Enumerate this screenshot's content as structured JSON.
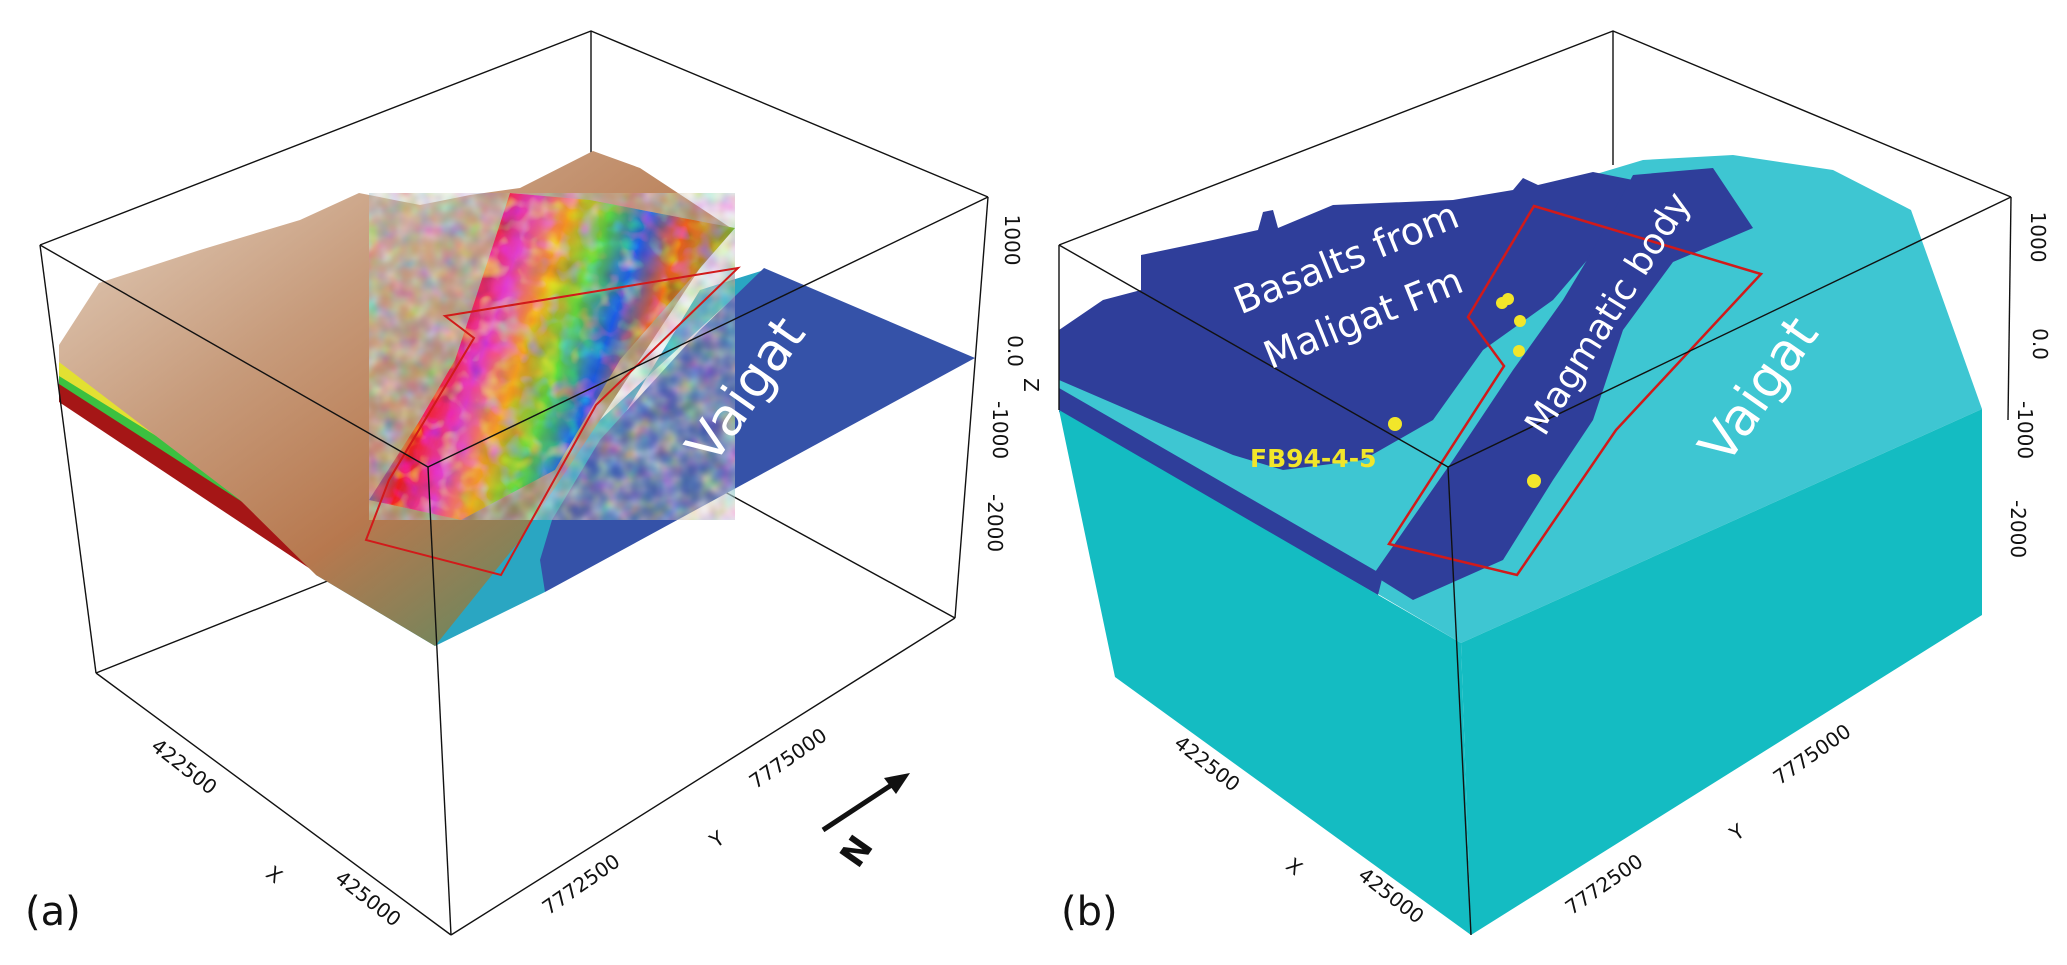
{
  "panels": [
    {
      "label": "(a)",
      "water_label": "Vaigat",
      "axes": {
        "x_label": "X",
        "x_ticks": [
          "422500",
          "425000"
        ],
        "y_label": "Y",
        "y_ticks": [
          "7772500",
          "7775000"
        ],
        "z_label": "Z",
        "z_ticks": [
          "1000",
          "0.0",
          "-1000",
          "-2000"
        ]
      },
      "north_label": "N"
    },
    {
      "label": "(b)",
      "water_label": "Vaigat",
      "unit_label_1": "Basalts from",
      "unit_label_2": "Maligat Fm",
      "body_label": "Magmatic body",
      "well_label": "FB94-4-5",
      "axes": {
        "x_label": "X",
        "x_ticks": [
          "422500",
          "425000"
        ],
        "y_label": "Y",
        "y_ticks": [
          "7772500",
          "7775000"
        ],
        "z_label": "Z",
        "z_ticks": [
          "1000",
          "0.0",
          "-1000",
          "-2000"
        ]
      }
    }
  ],
  "colors": {
    "water_blue": "#3552a8",
    "basalt_dark_blue": "#2f3e9a",
    "model_cyan": "#14bcc2",
    "surface_light_cyan": "#3ec6d2",
    "outline_red": "#d11a1a",
    "well_yellow": "#f2e62a"
  }
}
